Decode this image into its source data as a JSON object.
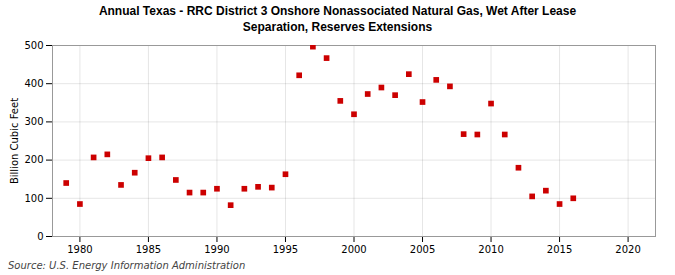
{
  "chart_data": {
    "type": "scatter",
    "title": "Annual Texas - RRC District 3 Onshore Nonassociated Natural Gas, Wet After Lease\nSeparation, Reserves Extensions",
    "ylabel": "Billion Cubic Feet",
    "source": "Source: U.S. Energy Information Administration",
    "x": [
      1979,
      1980,
      1981,
      1982,
      1983,
      1984,
      1985,
      1986,
      1987,
      1988,
      1989,
      1990,
      1991,
      1992,
      1993,
      1994,
      1995,
      1996,
      1997,
      1998,
      1999,
      2000,
      2001,
      2002,
      2003,
      2004,
      2005,
      2006,
      2007,
      2008,
      2009,
      2010,
      2011,
      2012,
      2013,
      2014,
      2015,
      2016
    ],
    "values": [
      140,
      85,
      207,
      215,
      135,
      167,
      205,
      207,
      148,
      115,
      115,
      125,
      82,
      125,
      130,
      128,
      163,
      422,
      497,
      467,
      355,
      320,
      373,
      390,
      370,
      425,
      352,
      410,
      393,
      268,
      267,
      348,
      267,
      180,
      105,
      120,
      85,
      100
    ],
    "color": "#cc0000",
    "marker": "square",
    "xlim": [
      1978,
      2022
    ],
    "ylim": [
      0,
      500
    ],
    "xticks": [
      1980,
      1985,
      1990,
      1995,
      2000,
      2005,
      2010,
      2015,
      2020
    ],
    "yticks": [
      0,
      100,
      200,
      300,
      400,
      500
    ],
    "grid": true
  }
}
